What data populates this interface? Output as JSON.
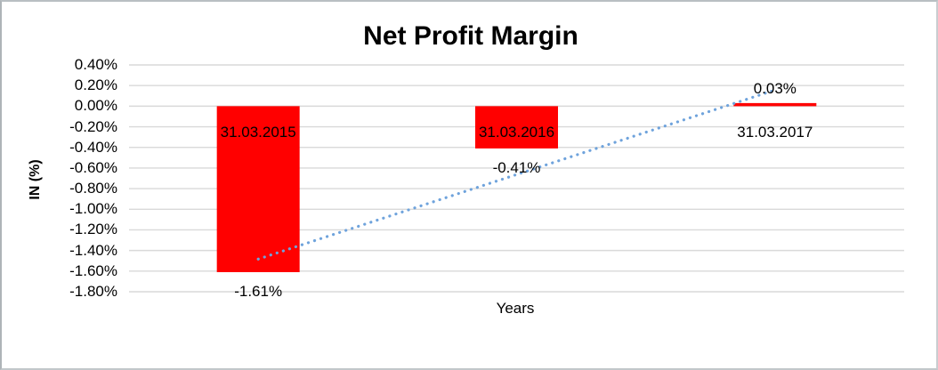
{
  "frame": {
    "background": "#FFFFFF",
    "border_color": "#BEC4C8"
  },
  "chart_data": {
    "type": "bar",
    "title": "Net Profit Margin",
    "xlabel": "Years",
    "ylabel": "IN (%)",
    "categories": [
      "31.03.2015",
      "31.03.2016",
      "31.03.2017"
    ],
    "values": [
      -1.61,
      -0.41,
      0.03
    ],
    "value_labels": [
      "-1.61%",
      "-0.41%",
      "0.03%"
    ],
    "series_name": "Net Profit Margin",
    "y_ticks": [
      0.4,
      0.2,
      0.0,
      -0.2,
      -0.4,
      -0.6,
      -0.8,
      -1.0,
      -1.2,
      -1.4,
      -1.6,
      -1.8
    ],
    "y_tick_labels": [
      "0.40%",
      "0.20%",
      "0.00%",
      "-0.20%",
      "-0.40%",
      "-0.60%",
      "-0.80%",
      "-1.00%",
      "-1.20%",
      "-1.40%",
      "-1.60%",
      "-1.80%"
    ],
    "ylim": [
      -1.8,
      0.4
    ],
    "grid": true,
    "legend": false,
    "bar_color": "#FF0000",
    "gridline_color": "#D9D9D9",
    "text_color": "#000000",
    "trendline": {
      "type": "linear",
      "style": "dotted",
      "color": "#6FA3DC"
    }
  }
}
